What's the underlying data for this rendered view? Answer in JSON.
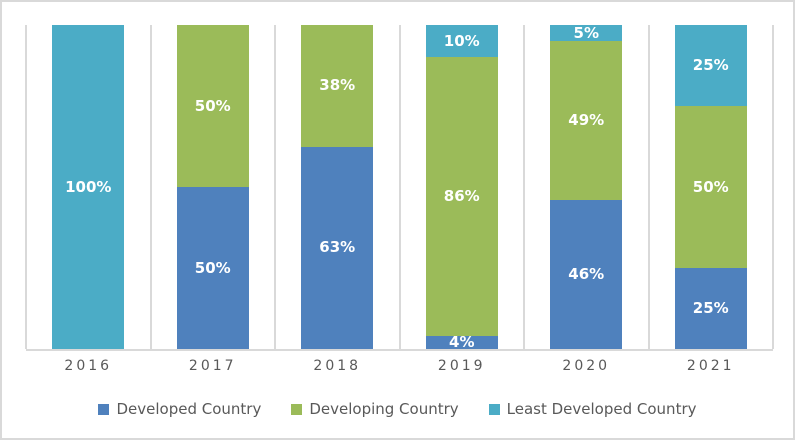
{
  "chart_data": {
    "type": "bar",
    "variant": "stacked-100-percent-column",
    "title": "",
    "xlabel": "",
    "ylabel": "",
    "ylim": [
      0,
      100
    ],
    "value_suffix": "%",
    "grid": "vertical-category-separators",
    "legend_position": "bottom-center",
    "categories": [
      "2016",
      "2017",
      "2018",
      "2019",
      "2020",
      "2021"
    ],
    "series": [
      {
        "name": "Developed Country",
        "color": "#4F81BD",
        "values": [
          0,
          50,
          63,
          4,
          46,
          25
        ]
      },
      {
        "name": "Developing Country",
        "color": "#9BBB59",
        "values": [
          0,
          50,
          38,
          86,
          49,
          50
        ]
      },
      {
        "name": "Least Developed Country",
        "color": "#4BACC6",
        "values": [
          100,
          0,
          0,
          10,
          5,
          25
        ]
      }
    ],
    "data_labels": {
      "color": "#FFFFFF",
      "bold": true,
      "shown_when": "value > 0"
    },
    "styles": {
      "gridline_color": "#D9D9D9",
      "axis_line_color": "#D9D9D9",
      "frame_border_color": "#D9D9D9",
      "tick_label_color": "#595959",
      "legend_text_color": "#595959",
      "background": "#FFFFFF"
    }
  }
}
